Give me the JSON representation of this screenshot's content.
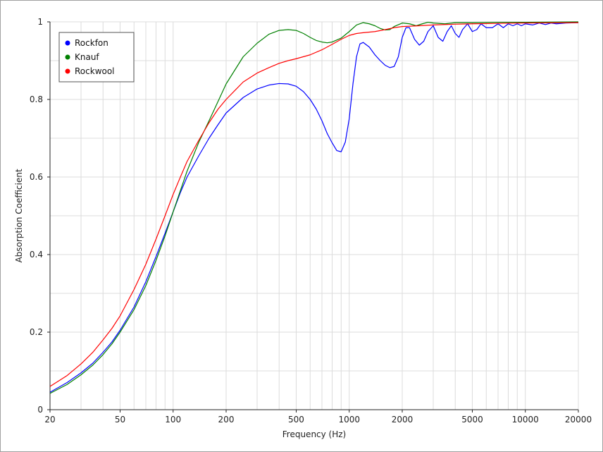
{
  "chart_data": {
    "type": "line",
    "title": "",
    "xlabel": "Frequency (Hz)",
    "ylabel": "Absorption Coefficient",
    "x_scale": "log",
    "xlim": [
      20,
      20000
    ],
    "ylim": [
      0,
      1
    ],
    "grid": true,
    "legend_position": "top-left",
    "x_ticks": [
      {
        "value": 20,
        "label": "20"
      },
      {
        "value": 50,
        "label": "50"
      },
      {
        "value": 100,
        "label": "100"
      },
      {
        "value": 200,
        "label": "200"
      },
      {
        "value": 500,
        "label": "500"
      },
      {
        "value": 1000,
        "label": "1000"
      },
      {
        "value": 2000,
        "label": "2000"
      },
      {
        "value": 5000,
        "label": "5000"
      },
      {
        "value": 10000,
        "label": "10000"
      },
      {
        "value": 20000,
        "label": "20000"
      }
    ],
    "y_ticks": [
      {
        "value": 0,
        "label": "0"
      },
      {
        "value": 0.2,
        "label": "0.2"
      },
      {
        "value": 0.4,
        "label": "0.4"
      },
      {
        "value": 0.6,
        "label": "0.6"
      },
      {
        "value": 0.8,
        "label": "0.8"
      },
      {
        "value": 1,
        "label": "1"
      }
    ],
    "series": [
      {
        "name": "Rockfon",
        "color": "#0000ff",
        "points": [
          [
            20,
            0.045
          ],
          [
            25,
            0.07
          ],
          [
            30,
            0.095
          ],
          [
            35,
            0.12
          ],
          [
            40,
            0.148
          ],
          [
            45,
            0.175
          ],
          [
            50,
            0.205
          ],
          [
            60,
            0.265
          ],
          [
            70,
            0.33
          ],
          [
            80,
            0.395
          ],
          [
            90,
            0.455
          ],
          [
            100,
            0.51
          ],
          [
            110,
            0.56
          ],
          [
            120,
            0.6
          ],
          [
            140,
            0.655
          ],
          [
            160,
            0.7
          ],
          [
            180,
            0.735
          ],
          [
            200,
            0.765
          ],
          [
            250,
            0.805
          ],
          [
            300,
            0.827
          ],
          [
            350,
            0.837
          ],
          [
            400,
            0.841
          ],
          [
            450,
            0.84
          ],
          [
            500,
            0.834
          ],
          [
            550,
            0.82
          ],
          [
            600,
            0.8
          ],
          [
            650,
            0.775
          ],
          [
            700,
            0.745
          ],
          [
            750,
            0.712
          ],
          [
            800,
            0.688
          ],
          [
            850,
            0.668
          ],
          [
            900,
            0.665
          ],
          [
            950,
            0.69
          ],
          [
            1000,
            0.75
          ],
          [
            1050,
            0.84
          ],
          [
            1100,
            0.91
          ],
          [
            1150,
            0.943
          ],
          [
            1200,
            0.947
          ],
          [
            1300,
            0.935
          ],
          [
            1400,
            0.915
          ],
          [
            1500,
            0.9
          ],
          [
            1600,
            0.888
          ],
          [
            1700,
            0.882
          ],
          [
            1800,
            0.885
          ],
          [
            1900,
            0.91
          ],
          [
            2000,
            0.96
          ],
          [
            2100,
            0.985
          ],
          [
            2200,
            0.985
          ],
          [
            2350,
            0.955
          ],
          [
            2500,
            0.94
          ],
          [
            2650,
            0.95
          ],
          [
            2800,
            0.975
          ],
          [
            3000,
            0.99
          ],
          [
            3200,
            0.96
          ],
          [
            3400,
            0.95
          ],
          [
            3600,
            0.975
          ],
          [
            3800,
            0.99
          ],
          [
            4000,
            0.97
          ],
          [
            4200,
            0.96
          ],
          [
            4400,
            0.98
          ],
          [
            4700,
            0.995
          ],
          [
            5000,
            0.975
          ],
          [
            5300,
            0.98
          ],
          [
            5600,
            0.995
          ],
          [
            6000,
            0.985
          ],
          [
            6500,
            0.985
          ],
          [
            7000,
            0.995
          ],
          [
            7500,
            0.985
          ],
          [
            8000,
            0.995
          ],
          [
            8500,
            0.99
          ],
          [
            9000,
            0.995
          ],
          [
            9500,
            0.99
          ],
          [
            10000,
            0.995
          ],
          [
            11000,
            0.992
          ],
          [
            12000,
            0.997
          ],
          [
            13000,
            0.993
          ],
          [
            14000,
            0.997
          ],
          [
            15000,
            0.995
          ],
          [
            17000,
            0.997
          ],
          [
            20000,
            0.998
          ]
        ]
      },
      {
        "name": "Knauf",
        "color": "#008000",
        "points": [
          [
            20,
            0.042
          ],
          [
            25,
            0.065
          ],
          [
            30,
            0.09
          ],
          [
            35,
            0.115
          ],
          [
            40,
            0.142
          ],
          [
            45,
            0.17
          ],
          [
            50,
            0.2
          ],
          [
            60,
            0.258
          ],
          [
            70,
            0.32
          ],
          [
            80,
            0.385
          ],
          [
            90,
            0.448
          ],
          [
            100,
            0.51
          ],
          [
            110,
            0.565
          ],
          [
            120,
            0.615
          ],
          [
            140,
            0.69
          ],
          [
            160,
            0.745
          ],
          [
            180,
            0.795
          ],
          [
            200,
            0.84
          ],
          [
            250,
            0.91
          ],
          [
            300,
            0.945
          ],
          [
            350,
            0.968
          ],
          [
            400,
            0.978
          ],
          [
            450,
            0.98
          ],
          [
            500,
            0.978
          ],
          [
            550,
            0.97
          ],
          [
            600,
            0.96
          ],
          [
            650,
            0.952
          ],
          [
            700,
            0.948
          ],
          [
            750,
            0.946
          ],
          [
            800,
            0.948
          ],
          [
            900,
            0.958
          ],
          [
            1000,
            0.975
          ],
          [
            1100,
            0.992
          ],
          [
            1200,
            0.998
          ],
          [
            1300,
            0.995
          ],
          [
            1400,
            0.99
          ],
          [
            1500,
            0.983
          ],
          [
            1600,
            0.979
          ],
          [
            1700,
            0.98
          ],
          [
            1800,
            0.988
          ],
          [
            2000,
            0.997
          ],
          [
            2200,
            0.995
          ],
          [
            2400,
            0.99
          ],
          [
            2600,
            0.995
          ],
          [
            2800,
            0.999
          ],
          [
            3000,
            0.997
          ],
          [
            3500,
            0.995
          ],
          [
            4000,
            0.998
          ],
          [
            5000,
            0.998
          ],
          [
            7000,
            0.999
          ],
          [
            10000,
            0.999
          ],
          [
            20000,
            1.0
          ]
        ]
      },
      {
        "name": "Rockwool",
        "color": "#ff0000",
        "points": [
          [
            20,
            0.06
          ],
          [
            25,
            0.088
          ],
          [
            30,
            0.118
          ],
          [
            35,
            0.148
          ],
          [
            40,
            0.18
          ],
          [
            45,
            0.21
          ],
          [
            50,
            0.242
          ],
          [
            60,
            0.31
          ],
          [
            70,
            0.375
          ],
          [
            80,
            0.44
          ],
          [
            90,
            0.5
          ],
          [
            100,
            0.555
          ],
          [
            110,
            0.6
          ],
          [
            120,
            0.64
          ],
          [
            140,
            0.695
          ],
          [
            160,
            0.74
          ],
          [
            180,
            0.775
          ],
          [
            200,
            0.8
          ],
          [
            250,
            0.845
          ],
          [
            300,
            0.868
          ],
          [
            350,
            0.882
          ],
          [
            400,
            0.893
          ],
          [
            450,
            0.9
          ],
          [
            500,
            0.905
          ],
          [
            600,
            0.915
          ],
          [
            700,
            0.928
          ],
          [
            800,
            0.942
          ],
          [
            900,
            0.955
          ],
          [
            1000,
            0.965
          ],
          [
            1100,
            0.97
          ],
          [
            1200,
            0.972
          ],
          [
            1400,
            0.975
          ],
          [
            1600,
            0.98
          ],
          [
            1800,
            0.985
          ],
          [
            2000,
            0.988
          ],
          [
            2500,
            0.99
          ],
          [
            3000,
            0.992
          ],
          [
            4000,
            0.994
          ],
          [
            5000,
            0.995
          ],
          [
            7000,
            0.996
          ],
          [
            10000,
            0.997
          ],
          [
            20000,
            0.998
          ]
        ]
      }
    ]
  }
}
